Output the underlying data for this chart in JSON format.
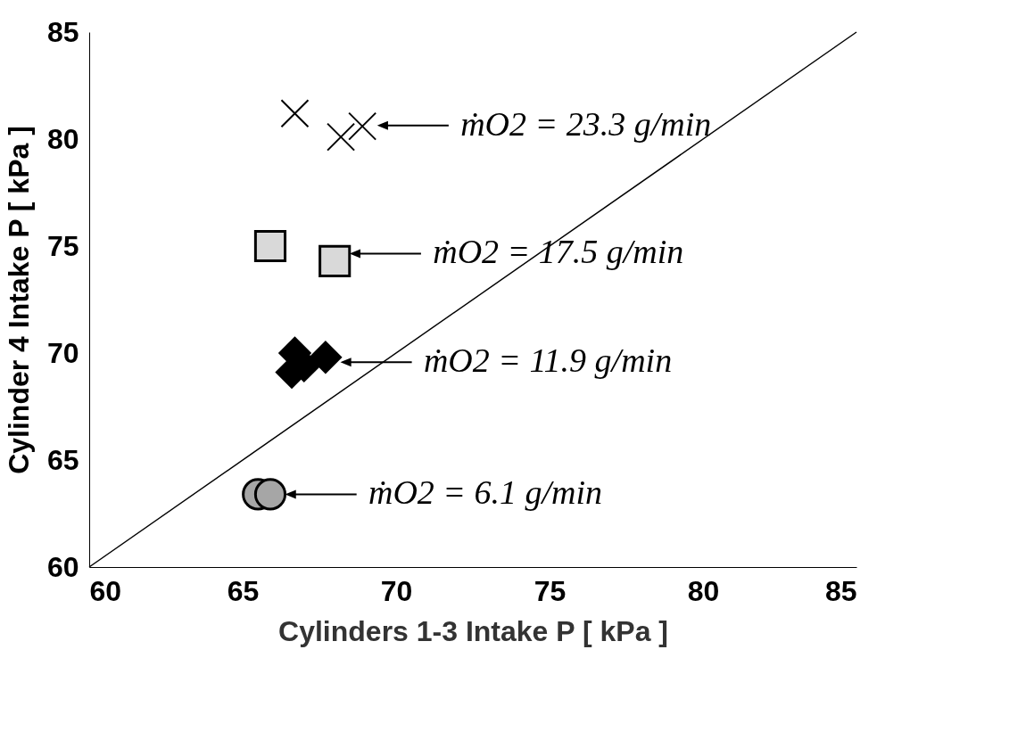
{
  "chart_data": {
    "type": "scatter",
    "xlabel": "Cylinders 1-3 Intake P [ kPa ]",
    "ylabel": "Cylinder 4 Intake P [ kPa ]",
    "xlim": [
      60,
      85
    ],
    "ylim": [
      60,
      85
    ],
    "xticks": [
      60,
      65,
      70,
      75,
      80,
      85
    ],
    "yticks": [
      60,
      65,
      70,
      75,
      80,
      85
    ],
    "grid": false,
    "series": [
      {
        "type": "line",
        "color": "#000000",
        "marker": "none",
        "x": [
          60,
          85
        ],
        "values": [
          60,
          85
        ]
      },
      {
        "color": "#a6a6a6",
        "marker": "circle",
        "x": [
          65.5,
          65.9
        ],
        "values": [
          63.4,
          63.4
        ]
      },
      {
        "color": "#000000",
        "marker": "diamond",
        "x": [
          66.7,
          67.7,
          67.0,
          66.6
        ],
        "values": [
          70.0,
          69.8,
          69.4,
          69.1
        ]
      },
      {
        "color": "#d9d9d9",
        "marker": "square",
        "x": [
          65.9,
          68.0
        ],
        "values": [
          75.0,
          74.3
        ]
      },
      {
        "color": "#000000",
        "marker": "cross",
        "x": [
          66.7,
          68.2,
          68.9
        ],
        "values": [
          81.2,
          80.1,
          80.6
        ]
      }
    ],
    "annotations": [
      "ṁO2 = 23.3 g/min",
      "ṁO2 = 17.5 g/min",
      "ṁO2 = 11.9 g/min",
      "ṁO2 = 6.1 g/min"
    ]
  }
}
